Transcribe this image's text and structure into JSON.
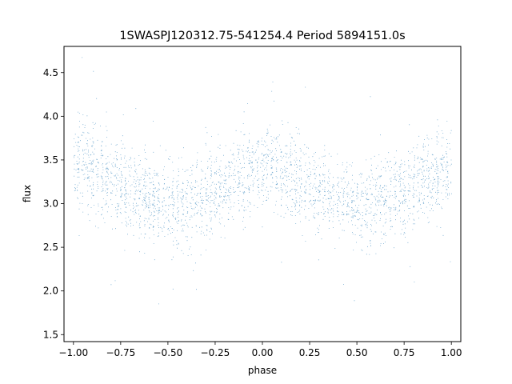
{
  "chart_data": {
    "type": "scatter",
    "title": "1SWASPJ120312.75-541254.4 Period 5894151.0s",
    "xlabel": "phase",
    "ylabel": "flux",
    "xlim": [
      -1.05,
      1.05
    ],
    "ylim": [
      1.42,
      4.8
    ],
    "xticks": [
      -1.0,
      -0.75,
      -0.5,
      -0.25,
      0.0,
      0.25,
      0.5,
      0.75,
      1.0
    ],
    "xtick_labels": [
      "−1.00",
      "−0.75",
      "−0.50",
      "−0.25",
      "0.00",
      "0.25",
      "0.50",
      "0.75",
      "1.00"
    ],
    "yticks": [
      1.5,
      2.0,
      2.5,
      3.0,
      3.5,
      4.0,
      4.5
    ],
    "ytick_labels": [
      "1.5",
      "2.0",
      "2.5",
      "3.0",
      "3.5",
      "4.0",
      "4.5"
    ],
    "grid": false,
    "marker_color": "#1f77b4",
    "series": [
      {
        "x_range": [
          -1.0,
          1.0
        ],
        "mean_curve_phase": [
          0.0,
          0.05,
          0.1,
          0.15,
          0.2,
          0.25,
          0.3,
          0.35,
          0.4,
          0.45,
          0.5,
          0.55,
          0.6,
          0.65,
          0.7,
          0.75,
          0.8,
          0.85,
          0.9,
          0.95,
          1.0
        ],
        "mean_curve_flux": [
          3.35,
          3.5,
          3.38,
          3.3,
          3.22,
          3.18,
          3.15,
          3.1,
          3.05,
          3.0,
          2.98,
          2.96,
          3.0,
          3.05,
          3.08,
          3.12,
          3.18,
          3.25,
          3.32,
          3.4,
          3.35
        ],
        "scatter_sigma": 0.24,
        "point_count": 16000
      }
    ]
  }
}
